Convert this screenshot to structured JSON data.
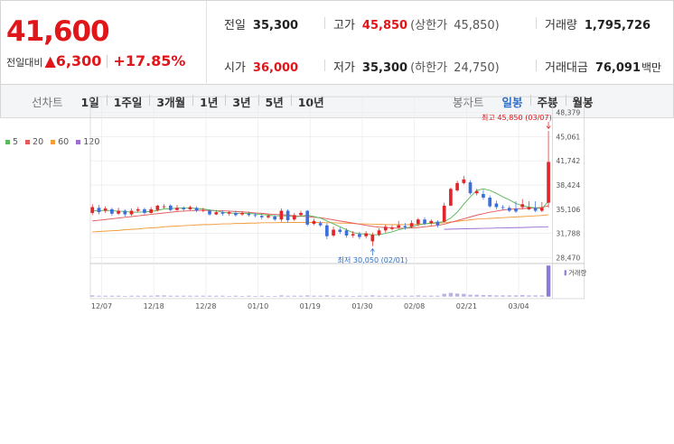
{
  "quote": {
    "price": "41,600",
    "change_label": "전일대비",
    "change_arrow": "▲",
    "change_value": "6,300",
    "change_pct": "+17.85%",
    "prev_close_label": "전일",
    "prev_close": "35,300",
    "high_label": "고가",
    "high": "45,850",
    "upper_limit_label": "(상한가",
    "upper_limit": "45,850)",
    "volume_label": "거래량",
    "volume": "1,795,726",
    "open_label": "시가",
    "open": "36,000",
    "low_label": "저가",
    "low": "35,300",
    "lower_limit_label": "(하한가",
    "lower_limit": "24,750)",
    "turnover_label": "거래대금",
    "turnover": "76,091",
    "turnover_unit": "백만"
  },
  "tabs": {
    "line_title": "선차트",
    "periods": [
      "1일",
      "1주일",
      "3개월",
      "1년",
      "3년",
      "5년",
      "10년"
    ],
    "candle_title": "봉차트",
    "candles": [
      "일봉",
      "주봉",
      "월봉"
    ],
    "active_candle": "일봉"
  },
  "colors": {
    "up": "#e0252b",
    "down": "#3d6fdc",
    "ma5": "#5cb85c",
    "ma20": "#e55a5a",
    "ma60": "#f39c3c",
    "ma120": "#9a6fd0",
    "accent": "#2c6fc8"
  },
  "chart_data": {
    "type": "candlestick",
    "legend": [
      {
        "name": "5",
        "color": "#5cb85c"
      },
      {
        "name": "20",
        "color": "#e55a5a"
      },
      {
        "name": "60",
        "color": "#f39c3c"
      },
      {
        "name": "120",
        "color": "#9a6fd0"
      }
    ],
    "y_ticks": [
      "48,379",
      "45,061",
      "41,742",
      "38,424",
      "35,106",
      "31,788",
      "28,470"
    ],
    "y_tick_values": [
      48379,
      45061,
      41742,
      38424,
      35106,
      31788,
      28470
    ],
    "ylim": [
      28470,
      48379
    ],
    "x_ticks": [
      "12/07",
      "12/18",
      "12/28",
      "01/10",
      "01/19",
      "01/30",
      "02/08",
      "02/21",
      "03/04"
    ],
    "x_tick_index": [
      0,
      8,
      16,
      24,
      32,
      40,
      48,
      56,
      64
    ],
    "candles": [
      {
        "o": 34600,
        "c": 35400,
        "h": 35800,
        "l": 34300
      },
      {
        "o": 35300,
        "c": 34700,
        "h": 35700,
        "l": 34400
      },
      {
        "o": 34900,
        "c": 35200,
        "h": 35500,
        "l": 34600
      },
      {
        "o": 35100,
        "c": 34500,
        "h": 35300,
        "l": 34200
      },
      {
        "o": 34500,
        "c": 34900,
        "h": 35300,
        "l": 34300
      },
      {
        "o": 34900,
        "c": 34400,
        "h": 35100,
        "l": 34100
      },
      {
        "o": 34400,
        "c": 34900,
        "h": 35200,
        "l": 34200
      },
      {
        "o": 34900,
        "c": 35100,
        "h": 35400,
        "l": 34700
      },
      {
        "o": 35100,
        "c": 34600,
        "h": 35300,
        "l": 34400
      },
      {
        "o": 34600,
        "c": 35100,
        "h": 35400,
        "l": 34500
      },
      {
        "o": 35000,
        "c": 35600,
        "h": 35700,
        "l": 34800
      },
      {
        "o": 35500,
        "c": 35500,
        "h": 35800,
        "l": 35200
      },
      {
        "o": 35600,
        "c": 35000,
        "h": 35800,
        "l": 34800
      },
      {
        "o": 35000,
        "c": 35300,
        "h": 35700,
        "l": 34900
      },
      {
        "o": 35300,
        "c": 35100,
        "h": 35500,
        "l": 34800
      },
      {
        "o": 35100,
        "c": 35400,
        "h": 35600,
        "l": 35000
      },
      {
        "o": 35300,
        "c": 34900,
        "h": 35500,
        "l": 34700
      },
      {
        "o": 34900,
        "c": 35000,
        "h": 35300,
        "l": 34700
      },
      {
        "o": 34900,
        "c": 34400,
        "h": 35100,
        "l": 34200
      },
      {
        "o": 34400,
        "c": 34700,
        "h": 35000,
        "l": 34300
      },
      {
        "o": 34700,
        "c": 34500,
        "h": 34900,
        "l": 34200
      },
      {
        "o": 34500,
        "c": 34700,
        "h": 34900,
        "l": 34200
      },
      {
        "o": 34600,
        "c": 34300,
        "h": 34900,
        "l": 34100
      },
      {
        "o": 34400,
        "c": 34600,
        "h": 34800,
        "l": 34200
      },
      {
        "o": 34500,
        "c": 34300,
        "h": 34800,
        "l": 34100
      },
      {
        "o": 34300,
        "c": 34200,
        "h": 34600,
        "l": 34000
      },
      {
        "o": 34200,
        "c": 34000,
        "h": 34500,
        "l": 33700
      },
      {
        "o": 34000,
        "c": 34200,
        "h": 34400,
        "l": 33800
      },
      {
        "o": 34100,
        "c": 33700,
        "h": 34300,
        "l": 33500
      },
      {
        "o": 33700,
        "c": 34900,
        "h": 35200,
        "l": 33400
      },
      {
        "o": 34900,
        "c": 33600,
        "h": 35100,
        "l": 33300
      },
      {
        "o": 33700,
        "c": 34300,
        "h": 34600,
        "l": 33500
      },
      {
        "o": 34300,
        "c": 34600,
        "h": 34900,
        "l": 34100
      },
      {
        "o": 34900,
        "c": 33000,
        "h": 35000,
        "l": 32800
      },
      {
        "o": 33100,
        "c": 33500,
        "h": 33800,
        "l": 32900
      },
      {
        "o": 33200,
        "c": 32900,
        "h": 33500,
        "l": 32700
      },
      {
        "o": 32900,
        "c": 31400,
        "h": 33200,
        "l": 31000
      },
      {
        "o": 31500,
        "c": 32300,
        "h": 32700,
        "l": 31300
      },
      {
        "o": 32300,
        "c": 32000,
        "h": 32600,
        "l": 31700
      },
      {
        "o": 32200,
        "c": 31500,
        "h": 32500,
        "l": 31200
      },
      {
        "o": 31500,
        "c": 31700,
        "h": 32100,
        "l": 31200
      },
      {
        "o": 31700,
        "c": 31300,
        "h": 32000,
        "l": 31000
      },
      {
        "o": 31400,
        "c": 31800,
        "h": 32100,
        "l": 31100
      },
      {
        "o": 30700,
        "c": 31600,
        "h": 31900,
        "l": 30050
      },
      {
        "o": 31600,
        "c": 32200,
        "h": 32500,
        "l": 31400
      },
      {
        "o": 32200,
        "c": 32700,
        "h": 33000,
        "l": 31900
      },
      {
        "o": 32400,
        "c": 32600,
        "h": 32900,
        "l": 32200
      },
      {
        "o": 32600,
        "c": 32900,
        "h": 33500,
        "l": 32400
      },
      {
        "o": 32800,
        "c": 32600,
        "h": 33200,
        "l": 32300
      },
      {
        "o": 32700,
        "c": 33200,
        "h": 33600,
        "l": 32500
      },
      {
        "o": 33100,
        "c": 33700,
        "h": 33900,
        "l": 32800
      },
      {
        "o": 33700,
        "c": 33100,
        "h": 34000,
        "l": 32900
      },
      {
        "o": 33200,
        "c": 33500,
        "h": 33700,
        "l": 32900
      },
      {
        "o": 33400,
        "c": 32900,
        "h": 33600,
        "l": 32600
      },
      {
        "o": 33400,
        "c": 35600,
        "h": 36000,
        "l": 33300
      },
      {
        "o": 35600,
        "c": 37900,
        "h": 38100,
        "l": 35500
      },
      {
        "o": 37700,
        "c": 38700,
        "h": 39000,
        "l": 37500
      },
      {
        "o": 38700,
        "c": 39200,
        "h": 39700,
        "l": 38500
      },
      {
        "o": 38800,
        "c": 37300,
        "h": 39100,
        "l": 37100
      },
      {
        "o": 37300,
        "c": 37600,
        "h": 37900,
        "l": 37000
      },
      {
        "o": 37200,
        "c": 36700,
        "h": 37800,
        "l": 36400
      },
      {
        "o": 36700,
        "c": 35500,
        "h": 37000,
        "l": 35300
      },
      {
        "o": 35900,
        "c": 35400,
        "h": 36300,
        "l": 35100
      },
      {
        "o": 35400,
        "c": 35300,
        "h": 35700,
        "l": 35000
      },
      {
        "o": 35300,
        "c": 34900,
        "h": 35600,
        "l": 34700
      },
      {
        "o": 35200,
        "c": 34800,
        "h": 36200,
        "l": 34600
      },
      {
        "o": 35400,
        "c": 35800,
        "h": 36500,
        "l": 35100
      },
      {
        "o": 35100,
        "c": 35400,
        "h": 36200,
        "l": 35000
      },
      {
        "o": 35300,
        "c": 34900,
        "h": 36200,
        "l": 34700
      },
      {
        "o": 34900,
        "c": 35300,
        "h": 36100,
        "l": 34700
      },
      {
        "o": 36000,
        "c": 41600,
        "h": 45850,
        "l": 35300
      }
    ],
    "ma5": [
      34900,
      34900,
      34950,
      34900,
      34850,
      34800,
      34700,
      34700,
      34750,
      34800,
      34950,
      35150,
      35200,
      35250,
      35300,
      35300,
      35200,
      35150,
      35000,
      34900,
      34700,
      34600,
      34550,
      34550,
      34550,
      34450,
      34400,
      34300,
      34200,
      34200,
      34200,
      34050,
      34150,
      34300,
      34100,
      33900,
      33500,
      33100,
      32700,
      32300,
      31900,
      31750,
      31700,
      31600,
      31600,
      31800,
      32000,
      32300,
      32500,
      32700,
      32950,
      33100,
      33200,
      33300,
      33400,
      33900,
      34700,
      35800,
      36800,
      37700,
      37900,
      37700,
      37300,
      36800,
      36400,
      35900,
      35600,
      35400,
      35300,
      35200,
      36200
    ],
    "ma20": [
      33500,
      33600,
      33700,
      33800,
      33900,
      34000,
      34100,
      34200,
      34300,
      34400,
      34500,
      34600,
      34700,
      34800,
      34850,
      34900,
      34950,
      34950,
      34950,
      34900,
      34900,
      34850,
      34800,
      34750,
      34700,
      34600,
      34550,
      34450,
      34400,
      34350,
      34300,
      34200,
      34150,
      34100,
      34000,
      33950,
      33800,
      33650,
      33500,
      33350,
      33200,
      33050,
      32900,
      32750,
      32650,
      32600,
      32550,
      32500,
      32500,
      32550,
      32600,
      32700,
      32800,
      32900,
      33050,
      33300,
      33550,
      33800,
      34050,
      34300,
      34500,
      34700,
      34850,
      35000,
      35100,
      35150,
      35200,
      35250,
      35300,
      35350,
      35600
    ],
    "ma60": [
      32000,
      32050,
      32100,
      32150,
      32200,
      32300,
      32350,
      32400,
      32500,
      32550,
      32600,
      32700,
      32750,
      32800,
      32850,
      32900,
      32950,
      33000,
      33000,
      33050,
      33100,
      33100,
      33150,
      33150,
      33200,
      33200,
      33250,
      33250,
      33250,
      33300,
      33300,
      33300,
      33300,
      33300,
      33300,
      33300,
      33250,
      33250,
      33200,
      33200,
      33150,
      33100,
      33100,
      33050,
      33050,
      33000,
      33000,
      33000,
      33000,
      33000,
      33050,
      33100,
      33150,
      33200,
      33250,
      33350,
      33450,
      33550,
      33650,
      33750,
      33800,
      33850,
      33900,
      33950,
      34000,
      34050,
      34100,
      34150,
      34200,
      34250,
      34350
    ],
    "ma120": [
      null,
      null,
      null,
      null,
      null,
      null,
      null,
      null,
      null,
      null,
      null,
      null,
      null,
      null,
      null,
      null,
      null,
      null,
      null,
      null,
      null,
      null,
      null,
      null,
      null,
      null,
      null,
      null,
      null,
      null,
      null,
      null,
      null,
      null,
      null,
      null,
      null,
      null,
      null,
      null,
      null,
      null,
      null,
      null,
      null,
      null,
      null,
      null,
      null,
      null,
      null,
      null,
      null,
      null,
      32350,
      32380,
      32400,
      32420,
      32440,
      32460,
      32480,
      32500,
      32520,
      32540,
      32560,
      32580,
      32600,
      32620,
      32650,
      32680,
      32700
    ],
    "volume_ratio": [
      0.04,
      0.03,
      0.03,
      0.03,
      0.03,
      0.02,
      0.03,
      0.03,
      0.03,
      0.03,
      0.04,
      0.04,
      0.03,
      0.03,
      0.03,
      0.03,
      0.03,
      0.03,
      0.03,
      0.03,
      0.03,
      0.02,
      0.03,
      0.02,
      0.03,
      0.02,
      0.03,
      0.02,
      0.02,
      0.04,
      0.03,
      0.03,
      0.03,
      0.04,
      0.03,
      0.03,
      0.04,
      0.03,
      0.03,
      0.03,
      0.02,
      0.03,
      0.03,
      0.04,
      0.03,
      0.03,
      0.03,
      0.03,
      0.03,
      0.03,
      0.04,
      0.03,
      0.03,
      0.03,
      0.09,
      0.12,
      0.1,
      0.09,
      0.06,
      0.06,
      0.05,
      0.05,
      0.04,
      0.04,
      0.04,
      0.04,
      0.05,
      0.04,
      0.04,
      0.04,
      1.0
    ],
    "high_annotation": "최고 45,850 (03/07)",
    "low_annotation": "최저 30,050 (02/01)",
    "volume_label": "거래량"
  }
}
